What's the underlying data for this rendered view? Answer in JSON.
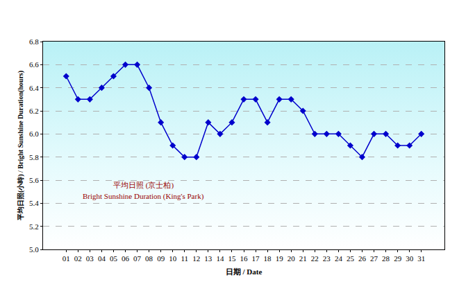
{
  "chart_data": {
    "type": "line",
    "x_label": "日期 / Date",
    "y_label": "平均日照(小時) / Bright Sunshine Duration(hours)",
    "annotations": [
      "平均日照 (京士柏)",
      "Bright Sunshine Duration (King's Park)"
    ],
    "categories": [
      "01",
      "02",
      "03",
      "04",
      "05",
      "06",
      "07",
      "08",
      "09",
      "10",
      "11",
      "12",
      "13",
      "14",
      "15",
      "16",
      "17",
      "18",
      "19",
      "20",
      "21",
      "22",
      "23",
      "24",
      "25",
      "26",
      "27",
      "28",
      "29",
      "30",
      "31"
    ],
    "values": [
      6.5,
      6.3,
      6.3,
      6.4,
      6.5,
      6.6,
      6.6,
      6.4,
      6.1,
      5.9,
      5.8,
      5.8,
      6.1,
      6.0,
      6.1,
      6.3,
      6.3,
      6.1,
      6.3,
      6.3,
      6.2,
      6.0,
      6.0,
      6.0,
      5.9,
      5.8,
      6.0,
      6.0,
      5.9,
      5.9,
      6.0
    ],
    "color": "#0000cc",
    "marker": "diamond",
    "ylim": [
      5.0,
      6.8
    ],
    "yticks": [
      {
        "value": 5,
        "label": "5.0"
      },
      5.2,
      5.4,
      5.6,
      5.8,
      {
        "value": 6,
        "label": "6.0"
      },
      6.2,
      6.4,
      6.6,
      6.8
    ],
    "grid": true
  }
}
